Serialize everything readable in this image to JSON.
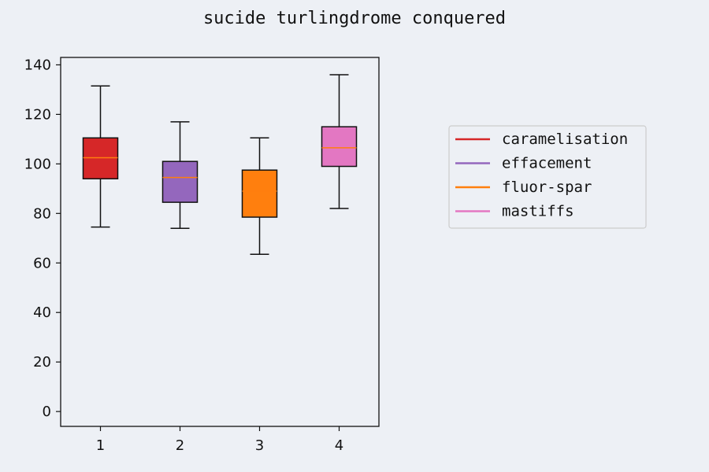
{
  "chart_data": {
    "type": "box",
    "title": "sucide turlingdrome conquered",
    "xlabel": "",
    "ylabel": "",
    "categories": [
      "1",
      "2",
      "3",
      "4"
    ],
    "ylim": [
      -6,
      143
    ],
    "yticks": [
      0,
      20,
      40,
      60,
      80,
      100,
      120,
      140
    ],
    "grid": false,
    "legend_position": "right",
    "median_color": "#ff7f0e",
    "series": [
      {
        "name": "caramelisation",
        "color": "#d62728",
        "whisker_low": 74.5,
        "q1": 94,
        "median": 102.5,
        "q3": 110.5,
        "whisker_high": 131.5
      },
      {
        "name": "effacement",
        "color": "#9467bd",
        "whisker_low": 74,
        "q1": 84.5,
        "median": 94.5,
        "q3": 101,
        "whisker_high": 117
      },
      {
        "name": "fluor-spar",
        "color": "#ff7f0e",
        "whisker_low": 63.5,
        "q1": 78.5,
        "median": 89,
        "q3": 97.5,
        "whisker_high": 110.5
      },
      {
        "name": "mastiffs",
        "color": "#e377c2",
        "whisker_low": 82,
        "q1": 99,
        "median": 106.5,
        "q3": 115,
        "whisker_high": 136
      }
    ]
  }
}
